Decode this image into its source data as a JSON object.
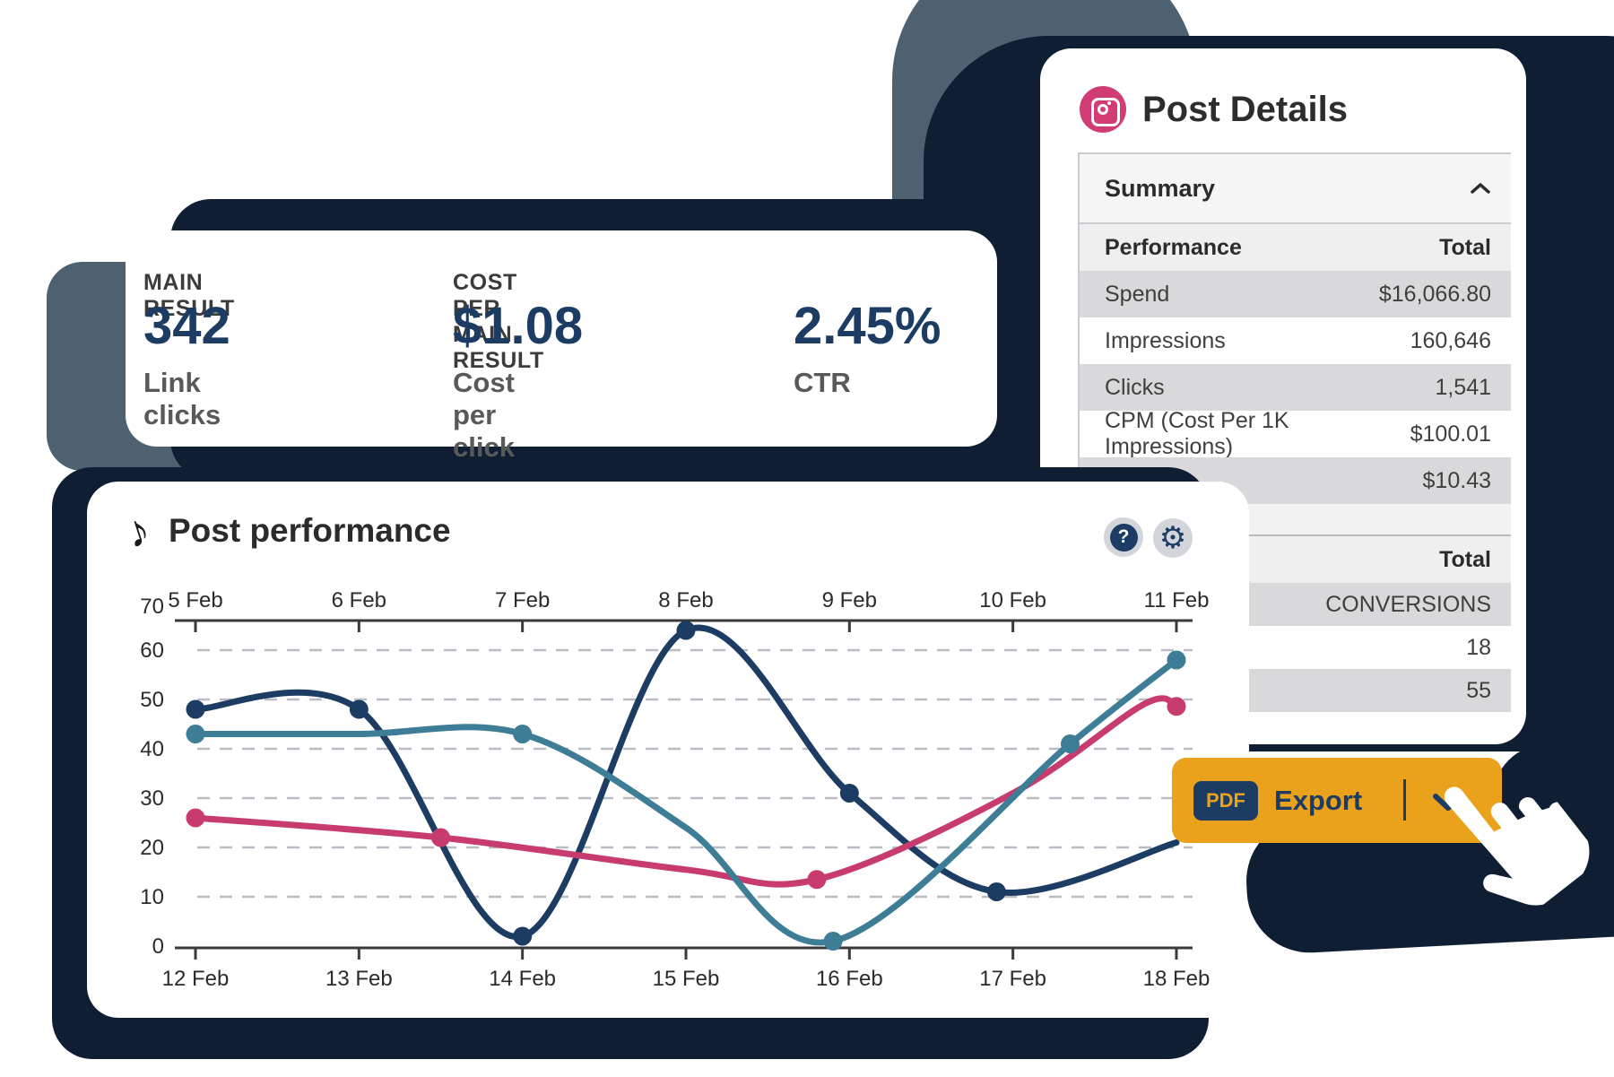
{
  "colors": {
    "navy_backing": "#101e34",
    "slate": "#4d6170",
    "accent_navy": "#1d3c63",
    "orange": "#eaa21c",
    "instagram_pink": "#d03c73",
    "row_gray": "#d9d9db",
    "header_gray": "#efeff0",
    "grid_gray": "#b9bcc2"
  },
  "icons": {
    "help": "?",
    "gear": "⚙",
    "note": "♪"
  },
  "metrics_card": {
    "col1": {
      "label": "MAIN RESULT",
      "value": "342",
      "sublabel": "Link clicks"
    },
    "col2": {
      "label": "COST PER MAIN RESULT",
      "value": "$1.08",
      "sublabel": "Cost per click"
    },
    "col3": {
      "value": "2.45%",
      "sublabel": "CTR"
    }
  },
  "post_details": {
    "title": "Post Details",
    "summary_label": "Summary",
    "table": {
      "header": {
        "label": "Performance",
        "value": "Total"
      },
      "rows": [
        [
          "Spend",
          "$16,066.80"
        ],
        [
          "Impressions",
          "160,646"
        ],
        [
          "Clicks",
          "1,541"
        ],
        [
          "CPM (Cost Per 1K Impressions)",
          "$100.01"
        ],
        [
          "",
          "$10.43"
        ]
      ]
    },
    "table2": {
      "header": {
        "value": "Total"
      },
      "rows": [
        [
          "",
          "CONVERSIONS"
        ],
        [
          "",
          "18"
        ],
        [
          "",
          "55"
        ]
      ]
    }
  },
  "chart_card": {
    "title": "Post performance"
  },
  "export_button": {
    "badge_label": "PDF",
    "label": "Export"
  },
  "chart_data": {
    "type": "line",
    "title": "Post performance",
    "x_axis_top_labels": [
      "5 Feb",
      "6 Feb",
      "7 Feb",
      "8 Feb",
      "9 Feb",
      "10 Feb",
      "11 Feb"
    ],
    "x_axis_bottom_labels": [
      "12 Feb",
      "13 Feb",
      "14 Feb",
      "15 Feb",
      "16 Feb",
      "17 Feb",
      "18 Feb"
    ],
    "ylim": [
      0,
      70
    ],
    "yticks": [
      0,
      10,
      20,
      30,
      40,
      50,
      60,
      70
    ],
    "grid": "dashed-horizontal",
    "legend": "none",
    "series": [
      {
        "name": "navy-line",
        "color": "#1d3c63",
        "points": [
          [
            12,
            48
          ],
          [
            13,
            48
          ],
          [
            14,
            2
          ],
          [
            15,
            64
          ],
          [
            16,
            31
          ],
          [
            16.9,
            11
          ],
          [
            18,
            21
          ]
        ],
        "markers": [
          [
            12,
            48
          ],
          [
            13,
            48
          ],
          [
            14,
            2
          ],
          [
            15,
            64
          ],
          [
            16,
            31
          ],
          [
            16.9,
            11
          ]
        ]
      },
      {
        "name": "pink-line",
        "color": "#c73b6e",
        "points": [
          [
            12,
            26
          ],
          [
            13.5,
            22
          ],
          [
            15,
            15.5
          ],
          [
            15.8,
            13.5
          ],
          [
            17,
            31
          ],
          [
            17.8,
            49
          ],
          [
            18,
            48.6
          ]
        ],
        "markers": [
          [
            12,
            26
          ],
          [
            13.5,
            22
          ],
          [
            15.8,
            13.5
          ],
          [
            18,
            48.6
          ]
        ]
      },
      {
        "name": "teal-line",
        "color": "#3e7d96",
        "points": [
          [
            12,
            43
          ],
          [
            13,
            43
          ],
          [
            14,
            43
          ],
          [
            15,
            24
          ],
          [
            15.9,
            1
          ],
          [
            17.35,
            41
          ],
          [
            18,
            58
          ]
        ],
        "markers": [
          [
            12,
            43
          ],
          [
            14,
            43
          ],
          [
            15.9,
            1
          ],
          [
            17.35,
            41
          ],
          [
            18,
            58
          ]
        ]
      }
    ]
  }
}
